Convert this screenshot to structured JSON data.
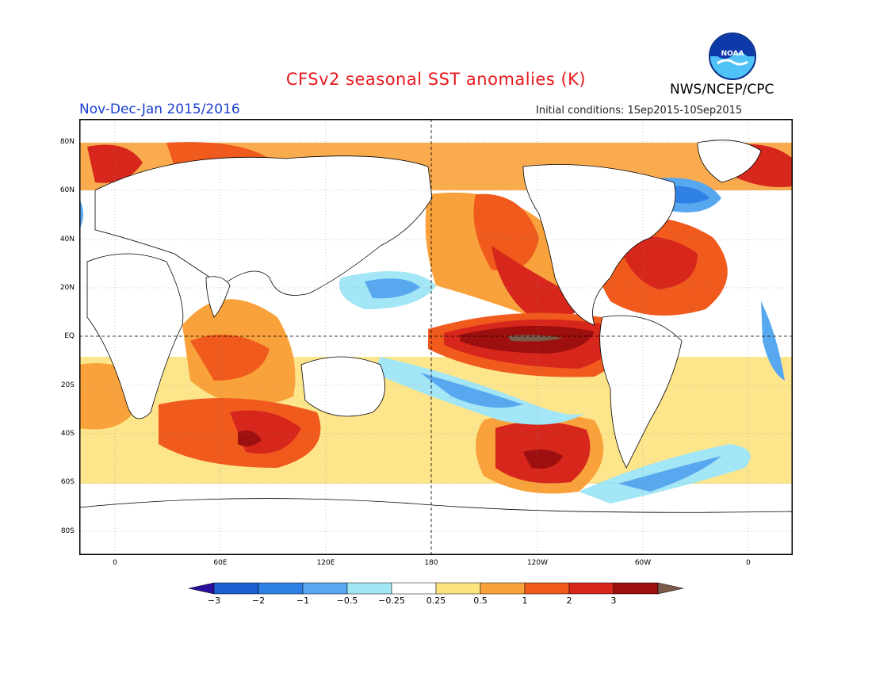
{
  "title": "CFSv2 seasonal SST anomalies (K)",
  "agency": "NWS/NCEP/CPC",
  "logo_text": "NOAA",
  "period": "Nov-Dec-Jan 2015/2016",
  "initial_conditions": "Initial conditions: 1Sep2015-10Sep2015",
  "lat_labels": [
    "80N",
    "60N",
    "40N",
    "20N",
    "EQ",
    "20S",
    "40S",
    "60S",
    "80S"
  ],
  "lon_labels": [
    "0",
    "60E",
    "120E",
    "180",
    "120W",
    "60W",
    "0"
  ],
  "colorbar": {
    "labels": [
      "−3",
      "−2",
      "−1",
      "−0.5",
      "−0.25",
      "0.25",
      "0.5",
      "1",
      "2",
      "3"
    ],
    "colors": [
      "#2a0f9e",
      "#1c5fd1",
      "#2f80e6",
      "#58a8f0",
      "#a3e6f5",
      "#ffffff",
      "#fde27e",
      "#f9a23b",
      "#f05a1c",
      "#d7271c",
      "#9e0f0f",
      "#7a5a48"
    ]
  },
  "map_colors": {
    "land": "#ffffff",
    "coastline": "#000000",
    "neutral": "#ffffff",
    "warm_light": "#fde27e",
    "warm_mid": "#f9a23b",
    "warm": "#f05a1c",
    "warm_strong": "#d7271c",
    "warm_extreme": "#9e0f0f",
    "warm_peak": "#7a5a48",
    "cool_light": "#a3e6f5",
    "cool_mid": "#58a8f0",
    "cool": "#2f80e6"
  }
}
